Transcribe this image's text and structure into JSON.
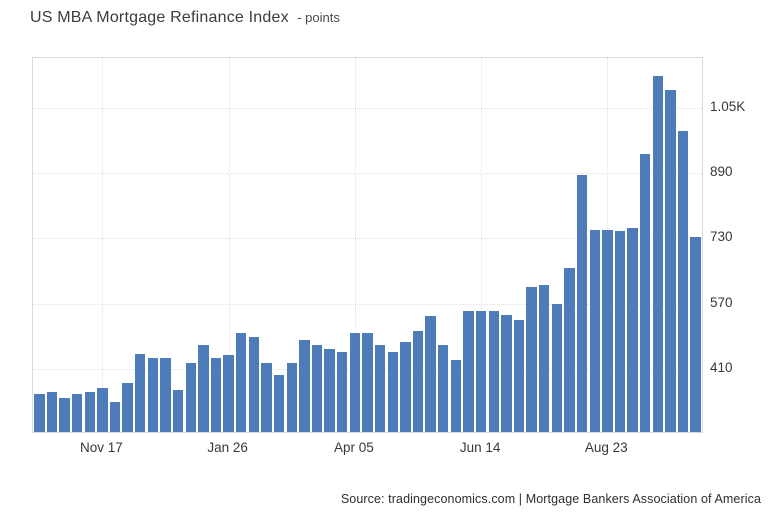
{
  "header": {
    "title": "US MBA Mortgage Refinance Index",
    "unit_label": "- points"
  },
  "footer": {
    "source": "Source: tradingeconomics.com | Mortgage Bankers Association of America"
  },
  "chart_data": {
    "type": "bar",
    "title": "US MBA Mortgage Refinance Index",
    "ylabel": "points",
    "legend": "none",
    "grid": "dotted",
    "bar_color": "#4e7cb8",
    "border_color": "#d9d9d9",
    "ylim": [
      256,
      1171
    ],
    "y_ticks": [
      {
        "label": "1.05K",
        "value": 1050
      },
      {
        "label": "890",
        "value": 890
      },
      {
        "label": "730",
        "value": 730
      },
      {
        "label": "570",
        "value": 570
      },
      {
        "label": "410",
        "value": 410
      }
    ],
    "x_ticks": [
      {
        "label": "Nov 17",
        "index": 5
      },
      {
        "label": "Jan 26",
        "index": 15
      },
      {
        "label": "Apr 05",
        "index": 25
      },
      {
        "label": "Jun 14",
        "index": 35
      },
      {
        "label": "Aug 23",
        "index": 45
      }
    ],
    "values": [
      348,
      355,
      339,
      348,
      355,
      363,
      329,
      375,
      446,
      436,
      436,
      358,
      424,
      468,
      437,
      445,
      498,
      488,
      425,
      395,
      425,
      480,
      468,
      460,
      453,
      498,
      498,
      470,
      453,
      476,
      502,
      539,
      468,
      433,
      551,
      551,
      551,
      543,
      529,
      612,
      616,
      570,
      657,
      885,
      750,
      750,
      747,
      754,
      936,
      1127,
      1092,
      993,
      732
    ]
  }
}
